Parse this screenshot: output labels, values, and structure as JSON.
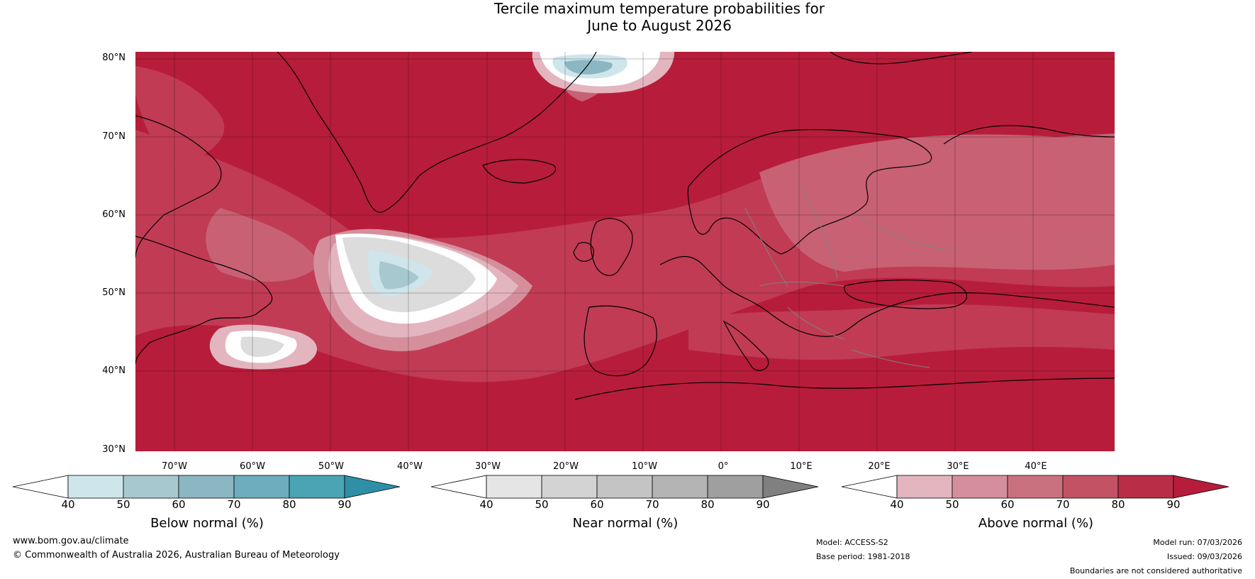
{
  "title": {
    "line1": "Tercile maximum temperature probabilities for",
    "line2": "June to August 2026"
  },
  "map": {
    "latitudes": [
      "80°N",
      "70°N",
      "60°N",
      "50°N",
      "40°N",
      "30°N"
    ],
    "longitudes": [
      "70°W",
      "60°W",
      "50°W",
      "40°W",
      "30°W",
      "20°W",
      "10°W",
      "0°",
      "10°E",
      "20°E",
      "30°E",
      "40°E"
    ],
    "base_color": "#b71d3a"
  },
  "colorbars": [
    {
      "label": "Below normal (%)",
      "ticks": [
        "40",
        "50",
        "60",
        "70",
        "80",
        "90"
      ],
      "colors": [
        "#cfe5ec",
        "#a8c8d0",
        "#8bb7c3",
        "#6dadbd",
        "#4aa4b4",
        "#2e8fa6"
      ]
    },
    {
      "label": "Near normal (%)",
      "ticks": [
        "40",
        "50",
        "60",
        "70",
        "80",
        "90"
      ],
      "colors": [
        "#e5e5e5",
        "#d3d3d3",
        "#c4c4c4",
        "#b4b4b4",
        "#9f9f9f",
        "#808080"
      ]
    },
    {
      "label": "Above normal (%)",
      "ticks": [
        "40",
        "50",
        "60",
        "70",
        "80",
        "90"
      ],
      "colors": [
        "#e3b5bf",
        "#d58f9c",
        "#ca717f",
        "#c45265",
        "#b92e46",
        "#b71d3a"
      ]
    }
  ],
  "footer": {
    "website": "www.bom.gov.au/climate",
    "copyright": "© Commonwealth of Australia 2026, Australian Bureau of Meteorology",
    "model": "Model: ACCESS-S2",
    "base_period": "Base period: 1981-2018",
    "model_run": "Model run: 07/03/2026",
    "issued": "Issued: 09/03/2026",
    "disclaimer": "Boundaries are not considered authoritative"
  }
}
